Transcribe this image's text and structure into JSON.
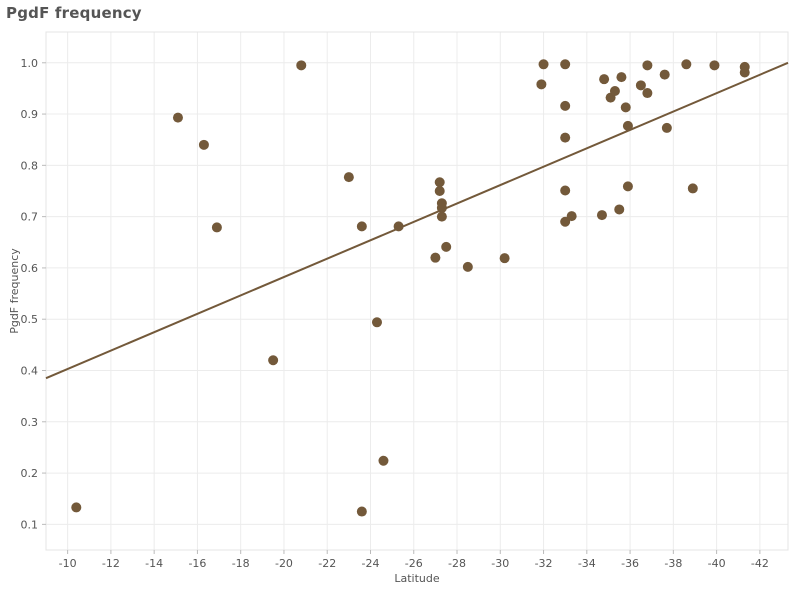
{
  "header": {
    "title": "PgdF frequency"
  },
  "chart_data": {
    "type": "scatter",
    "title": "PgdF frequency",
    "xlabel": "Latitude",
    "ylabel": "PgdF frequency",
    "x_reversed": true,
    "xlim": [
      -9,
      -43.3
    ],
    "ylim": [
      0.05,
      1.06
    ],
    "x_ticks": [
      -10,
      -12,
      -14,
      -16,
      -18,
      -20,
      -22,
      -24,
      -26,
      -28,
      -30,
      -32,
      -34,
      -36,
      -38,
      -40,
      -42
    ],
    "y_ticks": [
      0.1,
      0.2,
      0.3,
      0.4,
      0.5,
      0.6,
      0.7,
      0.8,
      0.9,
      1.0
    ],
    "y_tick_labels": [
      "0.1",
      "0.2",
      "0.3",
      "0.4",
      "0.5",
      "0.6",
      "0.7",
      "0.8",
      "0.9",
      "1.0"
    ],
    "grid": true,
    "point_color": "#73593a",
    "trend_color": "#73593a",
    "trend_line": [
      [
        -9,
        0.385
      ],
      [
        -43.3,
        1.0
      ]
    ],
    "points": [
      [
        -10.4,
        0.133
      ],
      [
        -15.1,
        0.893
      ],
      [
        -16.3,
        0.84
      ],
      [
        -16.9,
        0.679
      ],
      [
        -19.5,
        0.42
      ],
      [
        -20.8,
        0.995
      ],
      [
        -23.0,
        0.777
      ],
      [
        -23.6,
        0.681
      ],
      [
        -23.6,
        0.125
      ],
      [
        -24.3,
        0.494
      ],
      [
        -24.6,
        0.224
      ],
      [
        -25.3,
        0.681
      ],
      [
        -27.0,
        0.62
      ],
      [
        -27.2,
        0.767
      ],
      [
        -27.2,
        0.75
      ],
      [
        -27.3,
        0.726
      ],
      [
        -27.3,
        0.717
      ],
      [
        -27.3,
        0.7
      ],
      [
        -27.5,
        0.641
      ],
      [
        -28.5,
        0.602
      ],
      [
        -30.2,
        0.619
      ],
      [
        -31.9,
        0.958
      ],
      [
        -32.0,
        0.997
      ],
      [
        -33.0,
        0.997
      ],
      [
        -33.0,
        0.916
      ],
      [
        -33.0,
        0.854
      ],
      [
        -33.0,
        0.751
      ],
      [
        -33.0,
        0.69
      ],
      [
        -33.3,
        0.701
      ],
      [
        -34.7,
        0.703
      ],
      [
        -34.8,
        0.968
      ],
      [
        -35.1,
        0.932
      ],
      [
        -35.3,
        0.945
      ],
      [
        -35.5,
        0.714
      ],
      [
        -35.6,
        0.972
      ],
      [
        -35.8,
        0.913
      ],
      [
        -35.9,
        0.877
      ],
      [
        -35.9,
        0.759
      ],
      [
        -36.5,
        0.956
      ],
      [
        -36.8,
        0.941
      ],
      [
        -36.8,
        0.995
      ],
      [
        -37.6,
        0.977
      ],
      [
        -37.7,
        0.873
      ],
      [
        -38.6,
        0.997
      ],
      [
        -38.9,
        0.755
      ],
      [
        -39.9,
        0.995
      ],
      [
        -41.3,
        0.992
      ],
      [
        -41.3,
        0.981
      ]
    ]
  }
}
